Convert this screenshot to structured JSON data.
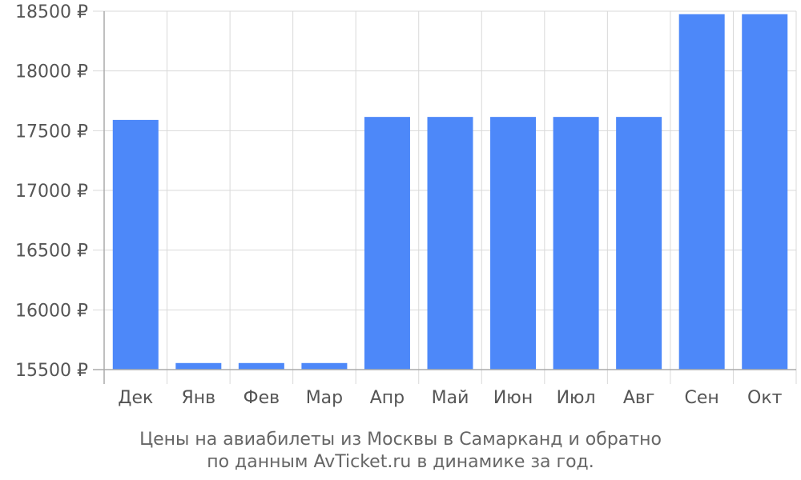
{
  "chart_data": {
    "type": "bar",
    "categories": [
      "Дек",
      "Янв",
      "Фев",
      "Мар",
      "Апр",
      "Май",
      "Июн",
      "Июл",
      "Авг",
      "Сен",
      "Окт"
    ],
    "values": [
      17590,
      15555,
      15555,
      15555,
      17615,
      17615,
      17615,
      17615,
      17615,
      18475,
      18475
    ],
    "ylim": [
      15500,
      18500
    ],
    "yticks": [
      15500,
      16000,
      16500,
      17000,
      17500,
      18000,
      18500
    ],
    "ytick_labels": [
      "15500 ₽",
      "16000 ₽",
      "16500 ₽",
      "17000 ₽",
      "17500 ₽",
      "18000 ₽",
      "18500 ₽"
    ],
    "grid": true,
    "bar_color": "#4d88f9",
    "caption_lines": [
      "Цены на авиабилеты из Москвы в Самарканд и обратно",
      "по данным AvTicket.ru в динамике за год."
    ]
  }
}
